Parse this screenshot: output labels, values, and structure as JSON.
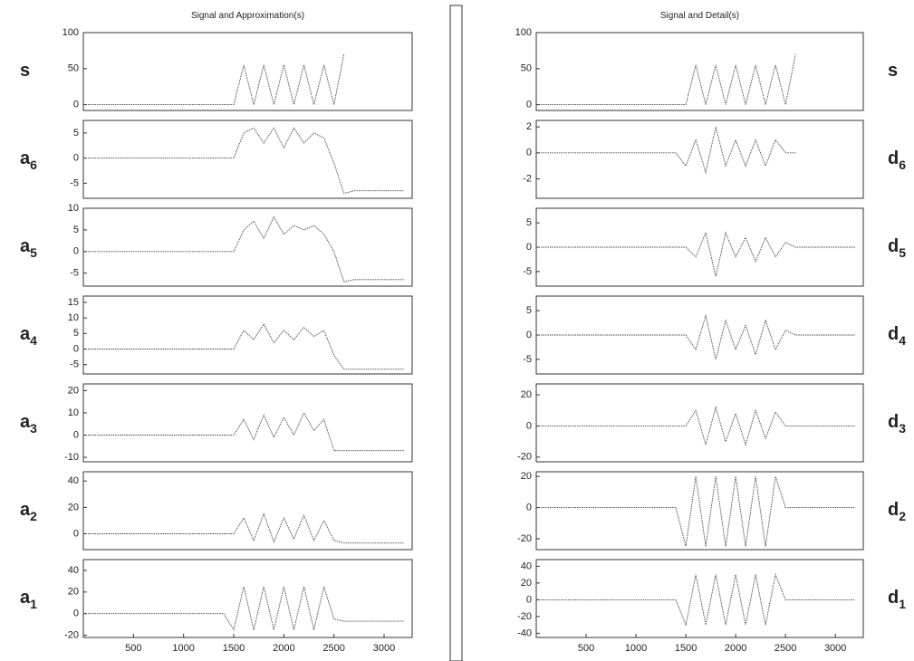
{
  "chart_data": [
    {
      "type": "line",
      "title": "Signal and Approximation(s)",
      "label": "s",
      "column": "left",
      "color": "#444444",
      "xlim": [
        0,
        3280
      ],
      "ylim": [
        -8,
        100
      ],
      "yticks": [
        0,
        50,
        100
      ],
      "x": [
        0,
        100,
        200,
        300,
        400,
        500,
        600,
        700,
        800,
        900,
        1000,
        1100,
        1200,
        1300,
        1400,
        1500,
        1600,
        1700,
        1800,
        1900,
        2000,
        2100,
        2200,
        2300,
        2400,
        2500,
        2600,
        2700,
        2800,
        2900,
        3000,
        3100,
        3200
      ],
      "values": [
        0,
        0,
        0,
        0,
        0,
        0,
        0,
        0,
        0,
        0,
        0,
        0,
        0,
        0,
        0,
        0,
        55,
        0,
        55,
        0,
        55,
        0,
        55,
        0,
        55,
        0,
        70,
        null,
        null,
        null,
        null,
        null,
        null
      ]
    },
    {
      "type": "line",
      "label": "a",
      "label_sub": "6",
      "column": "left",
      "color": "#444444",
      "xlim": [
        0,
        3280
      ],
      "ylim": [
        -8,
        7.5
      ],
      "yticks": [
        -5,
        0,
        5
      ],
      "x": [
        0,
        100,
        200,
        300,
        400,
        500,
        600,
        700,
        800,
        900,
        1000,
        1100,
        1200,
        1300,
        1400,
        1500,
        1600,
        1700,
        1800,
        1900,
        2000,
        2100,
        2200,
        2300,
        2400,
        2500,
        2600,
        2700,
        2800,
        2900,
        3000,
        3100,
        3200
      ],
      "values": [
        0,
        0,
        0,
        0,
        0,
        0,
        0,
        0,
        0,
        0,
        0,
        0,
        0,
        0,
        0,
        0,
        5,
        6,
        3,
        6,
        2,
        6,
        3,
        5,
        4,
        -1,
        -7,
        -6.5,
        -6.5,
        -6.5,
        -6.5,
        -6.5,
        -6.5
      ]
    },
    {
      "type": "line",
      "label": "a",
      "label_sub": "5",
      "column": "left",
      "color": "#444444",
      "xlim": [
        0,
        3280
      ],
      "ylim": [
        -8,
        10
      ],
      "yticks": [
        -5,
        0,
        5,
        10
      ],
      "x": [
        0,
        100,
        200,
        300,
        400,
        500,
        600,
        700,
        800,
        900,
        1000,
        1100,
        1200,
        1300,
        1400,
        1500,
        1600,
        1700,
        1800,
        1900,
        2000,
        2100,
        2200,
        2300,
        2400,
        2500,
        2600,
        2700,
        2800,
        2900,
        3000,
        3100,
        3200
      ],
      "values": [
        0,
        0,
        0,
        0,
        0,
        0,
        0,
        0,
        0,
        0,
        0,
        0,
        0,
        0,
        0,
        0,
        5,
        7,
        3,
        8,
        4,
        6,
        5,
        6,
        4,
        0,
        -7,
        -6.5,
        -6.5,
        -6.5,
        -6.5,
        -6.5,
        -6.5
      ]
    },
    {
      "type": "line",
      "label": "a",
      "label_sub": "4",
      "column": "left",
      "color": "#444444",
      "xlim": [
        0,
        3280
      ],
      "ylim": [
        -8,
        17
      ],
      "yticks": [
        -5,
        0,
        5,
        10,
        15
      ],
      "x": [
        0,
        100,
        200,
        300,
        400,
        500,
        600,
        700,
        800,
        900,
        1000,
        1100,
        1200,
        1300,
        1400,
        1500,
        1600,
        1700,
        1800,
        1900,
        2000,
        2100,
        2200,
        2300,
        2400,
        2500,
        2600,
        2700,
        2800,
        2900,
        3000,
        3100,
        3200
      ],
      "values": [
        0,
        0,
        0,
        0,
        0,
        0,
        0,
        0,
        0,
        0,
        0,
        0,
        0,
        0,
        0,
        0,
        6,
        3,
        8,
        2,
        6,
        3,
        7,
        4,
        6,
        -2,
        -6.5,
        -6.5,
        -6.5,
        -6.5,
        -6.5,
        -6.5,
        -6.5
      ]
    },
    {
      "type": "line",
      "label": "a",
      "label_sub": "3",
      "column": "left",
      "color": "#444444",
      "xlim": [
        0,
        3280
      ],
      "ylim": [
        -12,
        23
      ],
      "yticks": [
        -10,
        0,
        10,
        20
      ],
      "x": [
        0,
        100,
        200,
        300,
        400,
        500,
        600,
        700,
        800,
        900,
        1000,
        1100,
        1200,
        1300,
        1400,
        1500,
        1600,
        1700,
        1800,
        1900,
        2000,
        2100,
        2200,
        2300,
        2400,
        2500,
        2600,
        2700,
        2800,
        2900,
        3000,
        3100,
        3200
      ],
      "values": [
        0,
        0,
        0,
        0,
        0,
        0,
        0,
        0,
        0,
        0,
        0,
        0,
        0,
        0,
        0,
        0,
        7,
        -2,
        9,
        -1,
        8,
        0,
        10,
        2,
        7,
        -7,
        -7,
        -7,
        -7,
        -7,
        -7,
        -7,
        -7
      ]
    },
    {
      "type": "line",
      "label": "a",
      "label_sub": "2",
      "column": "left",
      "color": "#444444",
      "xlim": [
        0,
        3280
      ],
      "ylim": [
        -12,
        47
      ],
      "yticks": [
        0,
        20,
        40
      ],
      "x": [
        0,
        100,
        200,
        300,
        400,
        500,
        600,
        700,
        800,
        900,
        1000,
        1100,
        1200,
        1300,
        1400,
        1500,
        1600,
        1700,
        1800,
        1900,
        2000,
        2100,
        2200,
        2300,
        2400,
        2500,
        2600,
        2700,
        2800,
        2900,
        3000,
        3100,
        3200
      ],
      "values": [
        0,
        0,
        0,
        0,
        0,
        0,
        0,
        0,
        0,
        0,
        0,
        0,
        0,
        0,
        0,
        0,
        12,
        -5,
        15,
        -6,
        12,
        -4,
        14,
        -5,
        10,
        -5,
        -7,
        -7,
        -7,
        -7,
        -7,
        -7,
        -7
      ]
    },
    {
      "type": "line",
      "label": "a",
      "label_sub": "1",
      "column": "left",
      "color": "#444444",
      "xlim": [
        0,
        3280
      ],
      "ylim": [
        -22,
        50
      ],
      "yticks": [
        -20,
        0,
        20,
        40
      ],
      "xticks": [
        500,
        1000,
        1500,
        2000,
        2500,
        3000
      ],
      "x": [
        0,
        100,
        200,
        300,
        400,
        500,
        600,
        700,
        800,
        900,
        1000,
        1100,
        1200,
        1300,
        1400,
        1500,
        1600,
        1700,
        1800,
        1900,
        2000,
        2100,
        2200,
        2300,
        2400,
        2500,
        2600,
        2700,
        2800,
        2900,
        3000,
        3100,
        3200
      ],
      "values": [
        0,
        0,
        0,
        0,
        0,
        0,
        0,
        0,
        0,
        0,
        0,
        0,
        0,
        0,
        0,
        -15,
        25,
        -15,
        25,
        -15,
        25,
        -15,
        25,
        -15,
        25,
        -5,
        -7,
        -7,
        -7,
        -7,
        -7,
        -7,
        -7
      ]
    },
    {
      "type": "line",
      "title": "Signal and Detail(s)",
      "label": "s",
      "column": "right",
      "color": "#444444",
      "xlim": [
        0,
        3280
      ],
      "ylim": [
        -8,
        100
      ],
      "yticks": [
        0,
        50,
        100
      ],
      "x": [
        0,
        100,
        200,
        300,
        400,
        500,
        600,
        700,
        800,
        900,
        1000,
        1100,
        1200,
        1300,
        1400,
        1500,
        1600,
        1700,
        1800,
        1900,
        2000,
        2100,
        2200,
        2300,
        2400,
        2500,
        2600,
        2700,
        2800,
        2900,
        3000,
        3100,
        3200
      ],
      "values": [
        0,
        0,
        0,
        0,
        0,
        0,
        0,
        0,
        0,
        0,
        0,
        0,
        0,
        0,
        0,
        0,
        55,
        0,
        55,
        0,
        55,
        0,
        55,
        0,
        55,
        0,
        70,
        null,
        null,
        null,
        null,
        null,
        null
      ]
    },
    {
      "type": "line",
      "label": "d",
      "label_sub": "6",
      "column": "right",
      "color": "#444444",
      "xlim": [
        0,
        3280
      ],
      "ylim": [
        -3.5,
        2.5
      ],
      "yticks": [
        -2,
        0,
        2
      ],
      "x": [
        0,
        100,
        200,
        300,
        400,
        500,
        600,
        700,
        800,
        900,
        1000,
        1100,
        1200,
        1300,
        1400,
        1500,
        1600,
        1700,
        1800,
        1900,
        2000,
        2100,
        2200,
        2300,
        2400,
        2500,
        2600,
        2700,
        2800,
        2900,
        3000,
        3100,
        3200
      ],
      "values": [
        0,
        0,
        0,
        0,
        0,
        0,
        0,
        0,
        0,
        0,
        0,
        0,
        0,
        0,
        0,
        -1,
        1,
        -1.5,
        2,
        -1,
        1,
        -1,
        1,
        -1,
        1,
        0,
        0,
        null,
        null,
        null,
        null,
        null,
        null
      ]
    },
    {
      "type": "line",
      "label": "d",
      "label_sub": "5",
      "column": "right",
      "color": "#444444",
      "xlim": [
        0,
        3280
      ],
      "ylim": [
        -8,
        8
      ],
      "yticks": [
        -5,
        0,
        5
      ],
      "x": [
        0,
        100,
        200,
        300,
        400,
        500,
        600,
        700,
        800,
        900,
        1000,
        1100,
        1200,
        1300,
        1400,
        1500,
        1600,
        1700,
        1800,
        1900,
        2000,
        2100,
        2200,
        2300,
        2400,
        2500,
        2600,
        2700,
        2800,
        2900,
        3000,
        3100,
        3200
      ],
      "values": [
        0,
        0,
        0,
        0,
        0,
        0,
        0,
        0,
        0,
        0,
        0,
        0,
        0,
        0,
        0,
        0,
        -2,
        3,
        -6,
        3,
        -2,
        2,
        -3,
        2,
        -2,
        1,
        0,
        0,
        0,
        0,
        0,
        0,
        0
      ]
    },
    {
      "type": "line",
      "label": "d",
      "label_sub": "4",
      "column": "right",
      "color": "#444444",
      "xlim": [
        0,
        3280
      ],
      "ylim": [
        -8,
        8
      ],
      "yticks": [
        -5,
        0,
        5
      ],
      "x": [
        0,
        100,
        200,
        300,
        400,
        500,
        600,
        700,
        800,
        900,
        1000,
        1100,
        1200,
        1300,
        1400,
        1500,
        1600,
        1700,
        1800,
        1900,
        2000,
        2100,
        2200,
        2300,
        2400,
        2500,
        2600,
        2700,
        2800,
        2900,
        3000,
        3100,
        3200
      ],
      "values": [
        0,
        0,
        0,
        0,
        0,
        0,
        0,
        0,
        0,
        0,
        0,
        0,
        0,
        0,
        0,
        0,
        -3,
        4,
        -5,
        3,
        -3,
        2,
        -4,
        3,
        -3,
        1,
        0,
        0,
        0,
        0,
        0,
        0,
        0
      ]
    },
    {
      "type": "line",
      "label": "d",
      "label_sub": "3",
      "column": "right",
      "color": "#444444",
      "xlim": [
        0,
        3280
      ],
      "ylim": [
        -23,
        27
      ],
      "yticks": [
        -20,
        0,
        20
      ],
      "x": [
        0,
        100,
        200,
        300,
        400,
        500,
        600,
        700,
        800,
        900,
        1000,
        1100,
        1200,
        1300,
        1400,
        1500,
        1600,
        1700,
        1800,
        1900,
        2000,
        2100,
        2200,
        2300,
        2400,
        2500,
        2600,
        2700,
        2800,
        2900,
        3000,
        3100,
        3200
      ],
      "values": [
        0,
        0,
        0,
        0,
        0,
        0,
        0,
        0,
        0,
        0,
        0,
        0,
        0,
        0,
        0,
        0,
        10,
        -12,
        12,
        -10,
        8,
        -12,
        10,
        -8,
        9,
        0,
        0,
        0,
        0,
        0,
        0,
        0,
        0
      ]
    },
    {
      "type": "line",
      "label": "d",
      "label_sub": "2",
      "column": "right",
      "color": "#444444",
      "xlim": [
        0,
        3280
      ],
      "ylim": [
        -27,
        23
      ],
      "yticks": [
        -20,
        0,
        20
      ],
      "x": [
        0,
        100,
        200,
        300,
        400,
        500,
        600,
        700,
        800,
        900,
        1000,
        1100,
        1200,
        1300,
        1400,
        1500,
        1600,
        1700,
        1800,
        1900,
        2000,
        2100,
        2200,
        2300,
        2400,
        2500,
        2600,
        2700,
        2800,
        2900,
        3000,
        3100,
        3200
      ],
      "values": [
        0,
        0,
        0,
        0,
        0,
        0,
        0,
        0,
        0,
        0,
        0,
        0,
        0,
        0,
        0,
        -25,
        20,
        -25,
        20,
        -25,
        20,
        -25,
        20,
        -25,
        20,
        0,
        0,
        0,
        0,
        0,
        0,
        0,
        0
      ]
    },
    {
      "type": "line",
      "label": "d",
      "label_sub": "1",
      "column": "right",
      "color": "#444444",
      "xlim": [
        0,
        3280
      ],
      "ylim": [
        -45,
        48
      ],
      "yticks": [
        -40,
        -20,
        0,
        20,
        40
      ],
      "xticks": [
        500,
        1000,
        1500,
        2000,
        2500,
        3000
      ],
      "x": [
        0,
        100,
        200,
        300,
        400,
        500,
        600,
        700,
        800,
        900,
        1000,
        1100,
        1200,
        1300,
        1400,
        1500,
        1600,
        1700,
        1800,
        1900,
        2000,
        2100,
        2200,
        2300,
        2400,
        2500,
        2600,
        2700,
        2800,
        2900,
        3000,
        3100,
        3200
      ],
      "values": [
        0,
        0,
        0,
        0,
        0,
        0,
        0,
        0,
        0,
        0,
        0,
        0,
        0,
        0,
        0,
        -30,
        30,
        -30,
        30,
        -30,
        30,
        -30,
        30,
        -30,
        30,
        0,
        0,
        0,
        0,
        0,
        0,
        0,
        0
      ]
    }
  ]
}
